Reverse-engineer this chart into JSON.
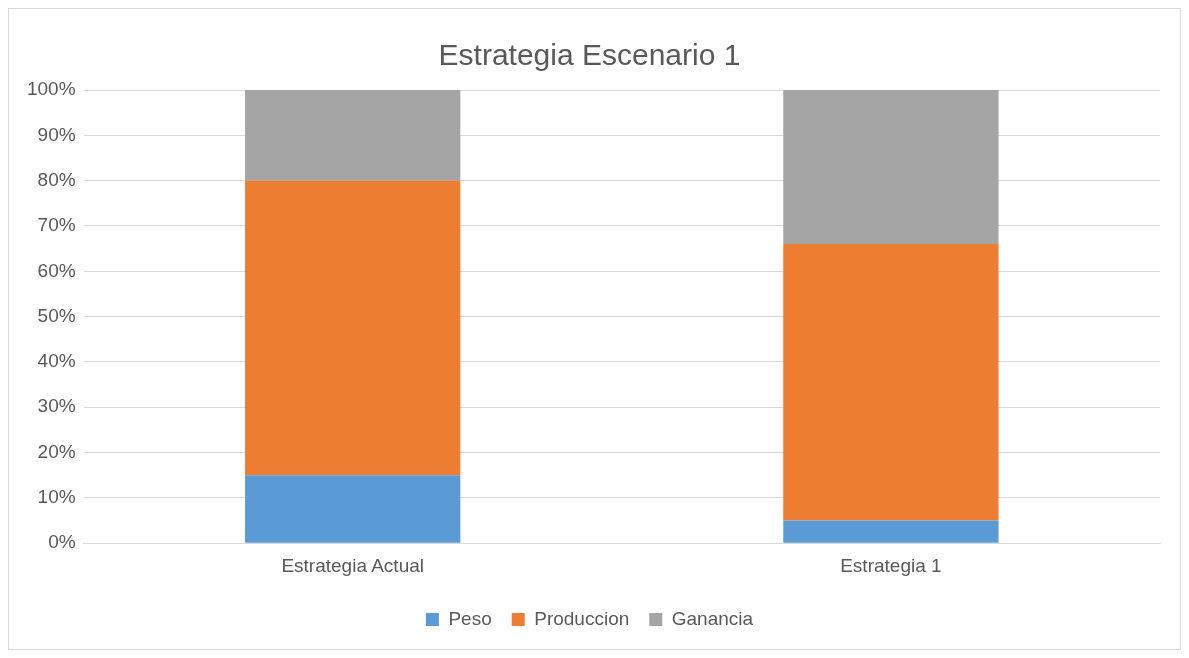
{
  "chart_data": {
    "type": "bar",
    "title": "Estrategia Escenario 1",
    "categories": [
      "Estrategia Actual",
      "Estrategia 1"
    ],
    "stacked": true,
    "series": [
      {
        "name": "Peso",
        "color": "#5b9bd5",
        "values": [
          15,
          5
        ]
      },
      {
        "name": "Produccion",
        "color": "#ed7d31",
        "values": [
          65,
          61
        ]
      },
      {
        "name": "Ganancia",
        "color": "#a5a5a5",
        "values": [
          20,
          34
        ]
      }
    ],
    "ylim": [
      0,
      100
    ],
    "yticks": [
      {
        "value": 0,
        "label": "0%"
      },
      {
        "value": 10,
        "label": "10%"
      },
      {
        "value": 20,
        "label": "20%"
      },
      {
        "value": 30,
        "label": "30%"
      },
      {
        "value": 40,
        "label": "40%"
      },
      {
        "value": 50,
        "label": "50%"
      },
      {
        "value": 60,
        "label": "60%"
      },
      {
        "value": 70,
        "label": "70%"
      },
      {
        "value": 80,
        "label": "80%"
      },
      {
        "value": 90,
        "label": "90%"
      },
      {
        "value": 100,
        "label": "100%"
      }
    ],
    "grid": "y",
    "legend": "bottom"
  }
}
